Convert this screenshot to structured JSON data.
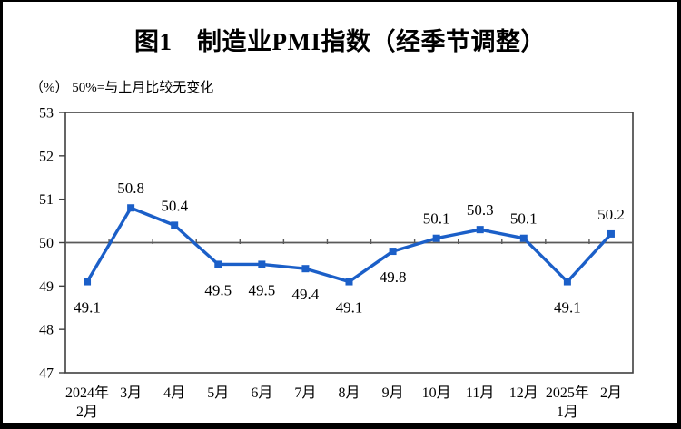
{
  "chart_data": {
    "type": "line",
    "title": "图1　制造业PMI指数（经季节调整）",
    "unit_note": "（%） 50%=与上月比较无变化",
    "categories": [
      "2024年\n2月",
      "3月",
      "4月",
      "5月",
      "6月",
      "7月",
      "8月",
      "9月",
      "10月",
      "11月",
      "12月",
      "2025年\n1月",
      "2月"
    ],
    "values": [
      49.1,
      50.8,
      50.4,
      49.5,
      49.5,
      49.4,
      49.1,
      49.8,
      50.1,
      50.3,
      50.1,
      49.1,
      50.2
    ],
    "label_positions": [
      "below",
      "above",
      "above",
      "below",
      "below",
      "below",
      "below",
      "below",
      "above",
      "above",
      "above",
      "below",
      "above"
    ],
    "ylim": [
      47,
      53
    ],
    "yticks": [
      47,
      48,
      49,
      50,
      51,
      52,
      53
    ],
    "reference_line": 50,
    "grid": "off",
    "legend": "none",
    "colors": {
      "series": "#1B5FC8",
      "axis": "#3F3F3F",
      "reference_line": "#595959",
      "text": "#000000",
      "background": "#FFFFFF"
    }
  }
}
